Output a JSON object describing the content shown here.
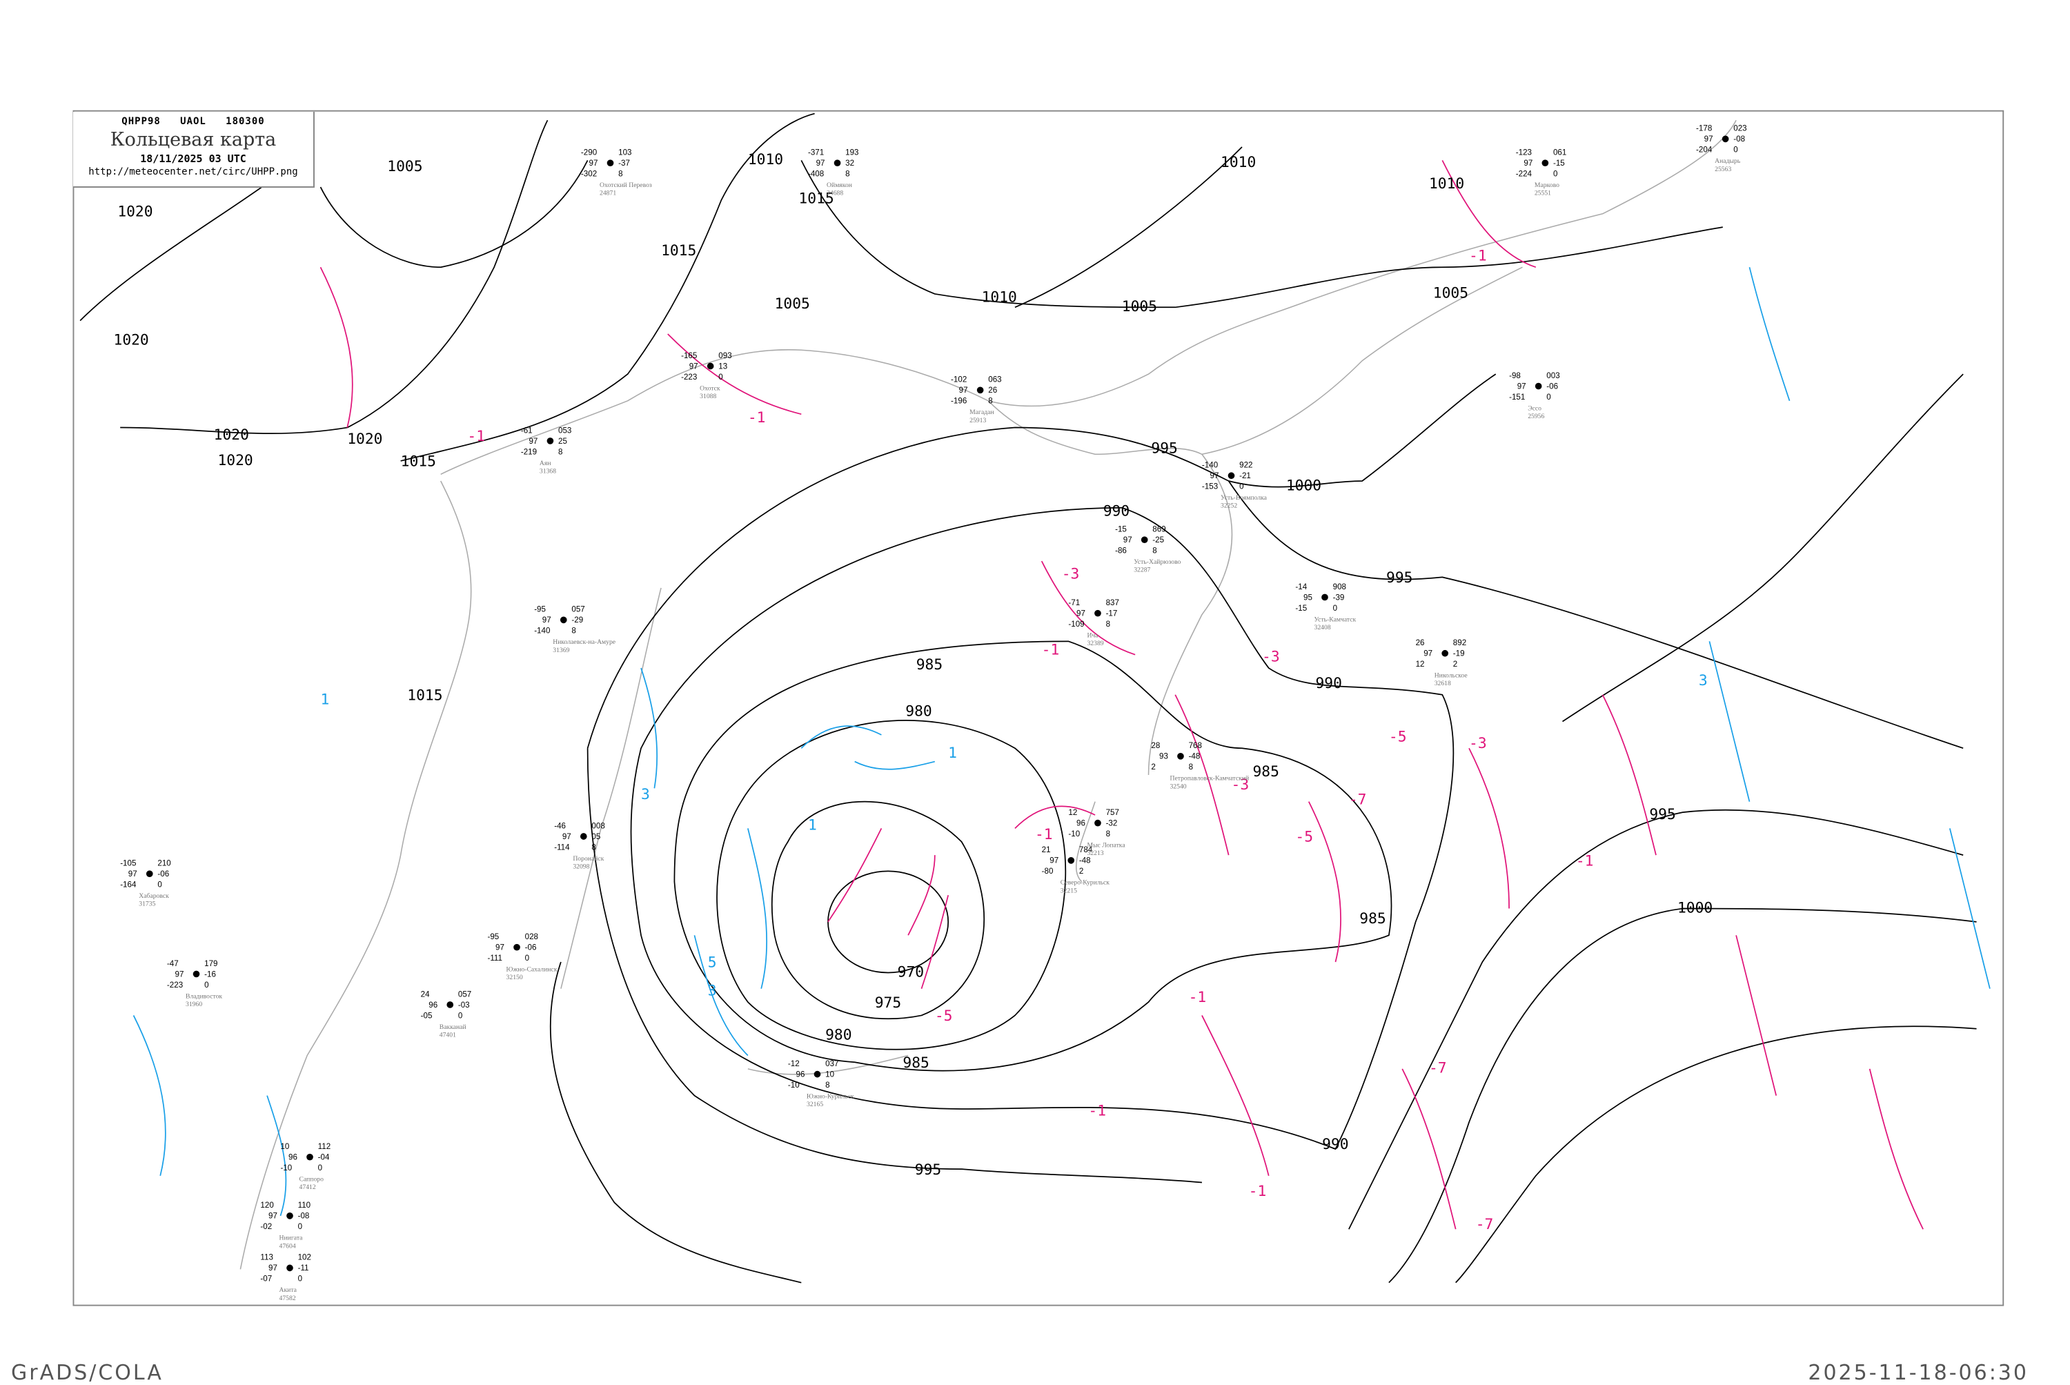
{
  "header": {
    "code_line": "QHPP98   UAOL   180300",
    "title": "Кольцевая карта",
    "datetime": "18/11/2025 03 UTC",
    "url": "http://meteocenter.net/circ/UHPP.png"
  },
  "footer": {
    "left": "GrADS/COLA",
    "right": "2025-11-18-06:30"
  },
  "colors": {
    "isobar": "#000000",
    "negative_isotherm": "#e0147a",
    "positive_isotherm": "#1aa0e8",
    "coastline": "#aaaaaa",
    "precip_marker": "#3a8ee6"
  },
  "isobar_labels": [
    "970",
    "975",
    "980",
    "980",
    "985",
    "985",
    "985",
    "985",
    "990",
    "990",
    "990",
    "995",
    "995",
    "995",
    "995",
    "1000",
    "1000",
    "1005",
    "1005",
    "1005",
    "1005",
    "1010",
    "1010",
    "1010",
    "1010",
    "1015",
    "1015",
    "1015",
    "1015",
    "1020",
    "1020",
    "1020",
    "1020",
    "1020"
  ],
  "isotherm_labels": [
    "-1",
    "-1",
    "-1",
    "-1",
    "-1",
    "-3",
    "-3",
    "-3",
    "-3",
    "-5",
    "-5",
    "-5",
    "-7",
    "-7",
    "-7",
    "-1",
    "-1",
    "1",
    "1",
    "1",
    "3",
    "3",
    "3",
    "5",
    "-1",
    "-1"
  ],
  "stations": [
    {
      "name": "Оймякон",
      "id": "24688",
      "values": [
        "-371",
        "97",
        "-408",
        "193",
        "32",
        "8"
      ]
    },
    {
      "name": "Охотский Перевоз",
      "id": "24871",
      "values": [
        "-290",
        "97",
        "-302",
        "103",
        "-37",
        "8"
      ]
    },
    {
      "name": "Аян",
      "id": "31368",
      "values": [
        "-61",
        "97",
        "-219",
        "053",
        "25",
        "8"
      ]
    },
    {
      "name": "Охотск",
      "id": "31088",
      "values": [
        "-165",
        "97",
        "-223",
        "093",
        "13",
        "0"
      ]
    },
    {
      "name": "Магадан",
      "id": "25913",
      "values": [
        "-102",
        "97",
        "-196",
        "063",
        "26",
        "8"
      ]
    },
    {
      "name": "Усть-Камчатск",
      "id": "32408",
      "values": [
        "-14",
        "95",
        "-15",
        "908",
        "-39",
        "0"
      ]
    },
    {
      "name": "Петропавловск-Камчатский",
      "id": "32540",
      "values": [
        "28",
        "93",
        "2",
        "768",
        "-48",
        "8"
      ]
    },
    {
      "name": "Северо-Курильск",
      "id": "32215",
      "values": [
        "21",
        "97",
        "-80",
        "784",
        "-48",
        "2"
      ]
    },
    {
      "name": "Мыс Лопатка",
      "id": "32213",
      "values": [
        "12",
        "96",
        "-10",
        "757",
        "-32",
        "8"
      ]
    },
    {
      "name": "Южно-Курильск",
      "id": "32165",
      "values": [
        "-12",
        "96",
        "-10",
        "037",
        "10",
        "8"
      ]
    },
    {
      "name": "Южно-Сахалинск",
      "id": "32150",
      "values": [
        "-95",
        "97",
        "-111",
        "028",
        "-06",
        "0"
      ]
    },
    {
      "name": "Николаевск-на-Амуре",
      "id": "31369",
      "values": [
        "-95",
        "97",
        "-140",
        "057",
        "-29",
        "8"
      ]
    },
    {
      "name": "Поронайск",
      "id": "32098",
      "values": [
        "-46",
        "97",
        "-114",
        "008",
        "05",
        "8"
      ]
    },
    {
      "name": "Усть-Хайрюзово",
      "id": "32287",
      "values": [
        "-15",
        "97",
        "-86",
        "869",
        "-25",
        "8"
      ]
    },
    {
      "name": "Усть-Воямполка",
      "id": "32252",
      "values": [
        "-140",
        "97",
        "-153",
        "922",
        "-21",
        "0"
      ]
    },
    {
      "name": "Ича",
      "id": "32389",
      "values": [
        "-71",
        "97",
        "-109",
        "837",
        "-17",
        "8"
      ]
    },
    {
      "name": "Никольское",
      "id": "32618",
      "values": [
        "26",
        "97",
        "12",
        "892",
        "-19",
        "2"
      ]
    },
    {
      "name": "Эссо",
      "id": "25956",
      "values": [
        "-98",
        "97",
        "-151",
        "003",
        "-06",
        "0"
      ]
    },
    {
      "name": "Марково",
      "id": "25551",
      "values": [
        "-123",
        "97",
        "-224",
        "061",
        "-15",
        "0"
      ]
    },
    {
      "name": "Анадырь",
      "id": "25563",
      "values": [
        "-178",
        "97",
        "-204",
        "023",
        "-08",
        "0"
      ]
    },
    {
      "name": "Хабаровск",
      "id": "31735",
      "values": [
        "-105",
        "97",
        "-164",
        "210",
        "-06",
        "0"
      ]
    },
    {
      "name": "Владивосток",
      "id": "31960",
      "values": [
        "-47",
        "97",
        "-223",
        "179",
        "-16",
        "0"
      ]
    },
    {
      "name": "Вакканай",
      "id": "47401",
      "values": [
        "24",
        "96",
        "-05",
        "057",
        "-03",
        "0"
      ]
    },
    {
      "name": "Саппоро",
      "id": "47412",
      "values": [
        "10",
        "96",
        "-10",
        "112",
        "-04",
        "0"
      ]
    },
    {
      "name": "Акита",
      "id": "47582",
      "values": [
        "113",
        "97",
        "-07",
        "102",
        "-11",
        "0"
      ]
    },
    {
      "name": "Ниигата",
      "id": "47604",
      "values": [
        "120",
        "97",
        "-02",
        "110",
        "-08",
        "0"
      ]
    }
  ]
}
